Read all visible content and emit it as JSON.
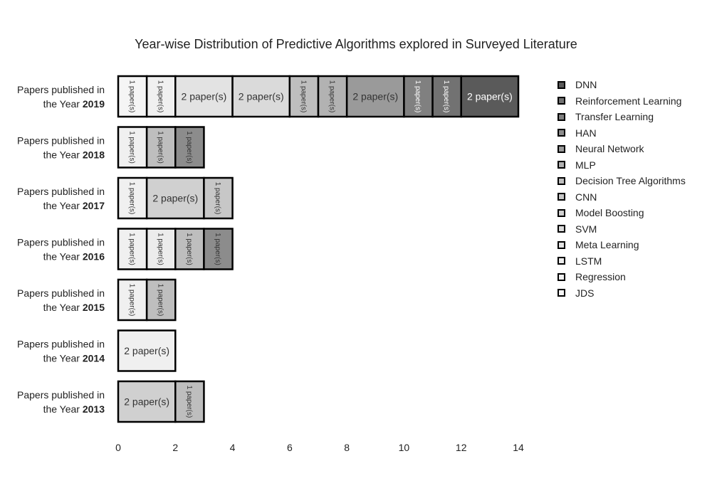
{
  "chart_data": {
    "type": "bar",
    "orientation": "horizontal",
    "stacked": true,
    "title": "Year-wise Distribution of Predictive Algorithms explored in Surveyed Literature",
    "xlim": [
      0,
      14
    ],
    "xticks": [
      "0",
      "2",
      "4",
      "6",
      "8",
      "10",
      "12",
      "14"
    ],
    "grid": false,
    "legend_placement": "right",
    "category_prefix": "Papers published in",
    "category_mid": "the Year",
    "categories": [
      "2019",
      "2018",
      "2017",
      "2016",
      "2015",
      "2014",
      "2013"
    ],
    "series": [
      {
        "name": "JDS",
        "color": "#f5f5f5",
        "values": [
          1,
          0,
          0,
          0,
          0,
          0,
          0
        ]
      },
      {
        "name": "Regression",
        "color": "#f0f0f0",
        "values": [
          1,
          1,
          1,
          1,
          1,
          2,
          0
        ]
      },
      {
        "name": "LSTM",
        "color": "#ececec",
        "values": [
          0,
          0,
          0,
          1,
          0,
          0,
          0
        ]
      },
      {
        "name": "Meta Learning",
        "color": "#e3e3e3",
        "values": [
          2,
          0,
          0,
          0,
          0,
          0,
          0
        ]
      },
      {
        "name": "SVM",
        "color": "#dadada",
        "values": [
          2,
          0,
          0,
          0,
          0,
          0,
          0
        ]
      },
      {
        "name": "Model Boosting",
        "color": "#d0d0d0",
        "values": [
          0,
          0,
          2,
          0,
          0,
          0,
          2
        ]
      },
      {
        "name": "CNN",
        "color": "#c7c7c7",
        "values": [
          0,
          0,
          1,
          0,
          0,
          0,
          0
        ]
      },
      {
        "name": "Decision Tree Algorithms",
        "color": "#bebebe",
        "values": [
          1,
          1,
          0,
          1,
          1,
          0,
          1
        ]
      },
      {
        "name": "MLP",
        "color": "#b2b2b2",
        "values": [
          1,
          0,
          0,
          0,
          0,
          0,
          0
        ]
      },
      {
        "name": "Neural Network",
        "color": "#9a9a9a",
        "values": [
          2,
          0,
          0,
          0,
          0,
          0,
          0
        ]
      },
      {
        "name": "HAN",
        "color": "#8c8c8c",
        "values": [
          0,
          1,
          0,
          1,
          0,
          0,
          0
        ]
      },
      {
        "name": "Transfer Learning",
        "color": "#808080",
        "values": [
          1,
          0,
          0,
          0,
          0,
          0,
          0
        ]
      },
      {
        "name": "Reinforcement Learning",
        "color": "#727272",
        "values": [
          1,
          0,
          0,
          0,
          0,
          0,
          0
        ]
      },
      {
        "name": "DNN",
        "color": "#5a5a5a",
        "values": [
          2,
          0,
          0,
          0,
          0,
          0,
          0
        ]
      }
    ],
    "label_suffix": "paper(s)",
    "legend_order": [
      "DNN",
      "Reinforcement Learning",
      "Transfer Learning",
      "HAN",
      "Neural Network",
      "MLP",
      "Decision Tree Algorithms",
      "CNN",
      "Model Boosting",
      "SVM",
      "Meta Learning",
      "LSTM",
      "Regression",
      "JDS"
    ]
  }
}
